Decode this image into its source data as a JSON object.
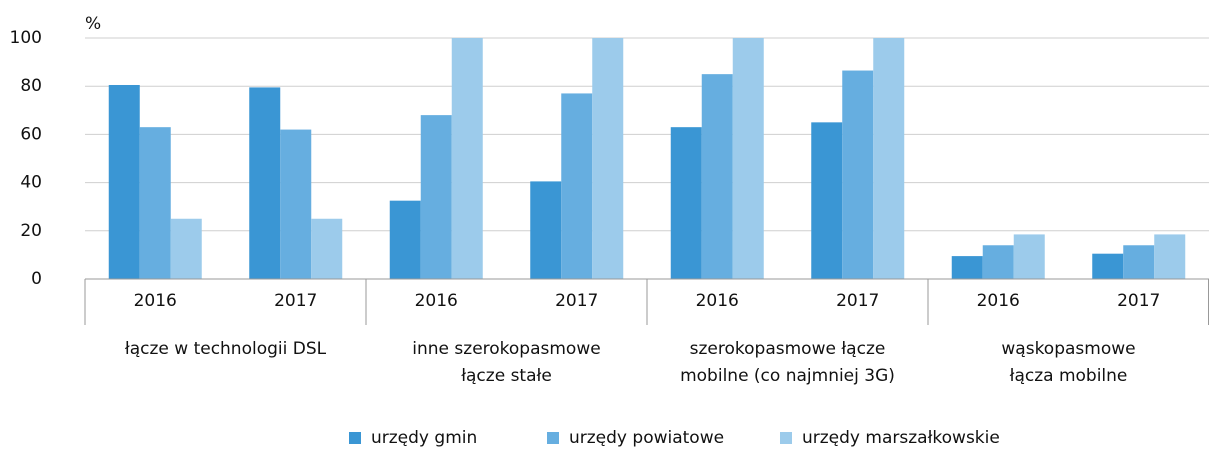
{
  "chart_data": {
    "type": "bar",
    "unit_label": "%",
    "categories": [
      "2016",
      "2017",
      "2016",
      "2017",
      "2016",
      "2017",
      "2016",
      "2017"
    ],
    "groups": [
      {
        "label": [
          "łącze w technologii DSL"
        ]
      },
      {
        "label": [
          "inne szerokopasmowe",
          "łącze stałe"
        ]
      },
      {
        "label": [
          "szerokopasmowe łącze",
          "mobilne (co najmniej 3G)"
        ]
      },
      {
        "label": [
          "wąskopasmowe",
          "łącza mobilne"
        ]
      }
    ],
    "series": [
      {
        "name": "urzędy gmin",
        "color": "#3a96d4",
        "values": [
          80.5,
          79.5,
          32.5,
          40.5,
          63,
          65,
          9.5,
          10.5
        ]
      },
      {
        "name": "urzędy powiatowe",
        "color": "#66aee0",
        "values": [
          63,
          62,
          68,
          77,
          85,
          86.5,
          14,
          14
        ]
      },
      {
        "name": "urzędy marszałkowskie",
        "color": "#9ccbeb",
        "values": [
          25,
          25,
          100,
          100,
          100,
          100,
          18.5,
          18.5
        ]
      }
    ],
    "ylim": [
      0,
      100
    ],
    "yticks": [
      0,
      20,
      40,
      60,
      80,
      100
    ],
    "grid": true
  }
}
